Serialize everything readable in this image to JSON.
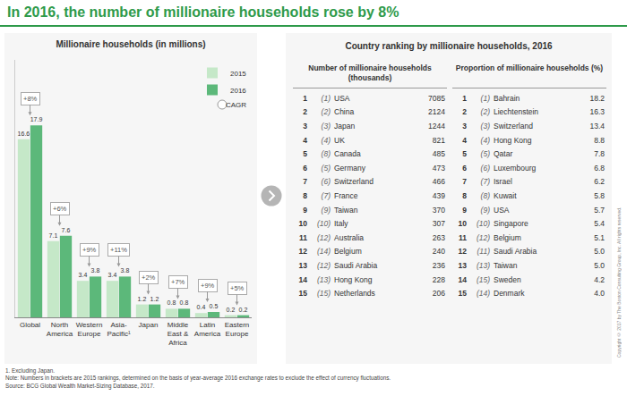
{
  "title": "In 2016, the number of millionaire households rose by 8%",
  "chart_data": {
    "type": "bar",
    "title": "Millionaire households (in millions)",
    "categories": [
      "Global",
      "North America",
      "Western Europe",
      "Asia-Pacific¹",
      "Japan",
      "Middle East & Africa",
      "Latin America",
      "Eastern Europe"
    ],
    "series": [
      {
        "name": "2015",
        "color": "#c5e8c8",
        "values": [
          16.6,
          7.1,
          3.4,
          3.4,
          1.2,
          0.8,
          0.4,
          0.2
        ]
      },
      {
        "name": "2016",
        "color": "#5cb87a",
        "values": [
          17.9,
          7.6,
          3.8,
          3.8,
          1.2,
          0.8,
          0.5,
          0.2
        ]
      }
    ],
    "ylim": [
      0,
      24
    ],
    "yticks": [],
    "grid": false,
    "legend": "top-right",
    "data_labels": true,
    "tick_labels": "x",
    "annotations": [
      "+8%",
      "+6%",
      "+9%",
      "+11%",
      "+2%",
      "+7%",
      "+9%",
      "+5%"
    ],
    "annotation_legend": "CAGR"
  },
  "table": {
    "title": "Country ranking by millionaire households, 2016",
    "panels": [
      {
        "header": "Number of millionaire households (thousands)",
        "rows": [
          [
            1,
            "(1)",
            "USA",
            7085
          ],
          [
            2,
            "(2)",
            "China",
            2124
          ],
          [
            3,
            "(3)",
            "Japan",
            1244
          ],
          [
            4,
            "(4)",
            "UK",
            821
          ],
          [
            5,
            "(8)",
            "Canada",
            485
          ],
          [
            6,
            "(5)",
            "Germany",
            473
          ],
          [
            7,
            "(6)",
            "Switzerland",
            466
          ],
          [
            8,
            "(7)",
            "France",
            439
          ],
          [
            9,
            "(9)",
            "Taiwan",
            370
          ],
          [
            10,
            "(10)",
            "Italy",
            307
          ],
          [
            11,
            "(12)",
            "Australia",
            263
          ],
          [
            12,
            "(14)",
            "Belgium",
            240
          ],
          [
            13,
            "(12)",
            "Saudi Arabia",
            236
          ],
          [
            14,
            "(13)",
            "Hong Kong",
            228
          ],
          [
            15,
            "(15)",
            "Netherlands",
            206
          ]
        ]
      },
      {
        "header": "Proportion of millionaire households (%)",
        "rows": [
          [
            1,
            "(1)",
            "Bahrain",
            "18.2"
          ],
          [
            2,
            "(2)",
            "Liechtenstein",
            "16.3"
          ],
          [
            3,
            "(3)",
            "Switzerland",
            "13.4"
          ],
          [
            4,
            "(4)",
            "Hong Kong",
            "8.8"
          ],
          [
            5,
            "(5)",
            "Qatar",
            "7.8"
          ],
          [
            6,
            "(6)",
            "Luxembourg",
            "6.8"
          ],
          [
            7,
            "(7)",
            "Israel",
            "6.2"
          ],
          [
            8,
            "(8)",
            "Kuwait",
            "5.8"
          ],
          [
            9,
            "(9)",
            "USA",
            "5.7"
          ],
          [
            10,
            "(10)",
            "Singapore",
            "5.4"
          ],
          [
            11,
            "(12)",
            "Belgium",
            "5.1"
          ],
          [
            12,
            "(11)",
            "Saudi Arabia",
            "5.0"
          ],
          [
            13,
            "(13)",
            "Taiwan",
            "5.0"
          ],
          [
            14,
            "(15)",
            "Sweden",
            "4.2"
          ],
          [
            15,
            "(14)",
            "Denmark",
            "4.0"
          ]
        ]
      }
    ]
  },
  "notes": [
    "1. Excluding Japan.",
    "Note: Numbers in brackets are 2015 rankings, determined on the basis of year-average 2016 exchange rates to exclude the effect of currency fluctuations.",
    "Source: BCG Global Wealth Market-Sizing Database, 2017."
  ],
  "copyright": "Copyright © 2017 by The Boston Consulting Group, Inc. All rights reserved."
}
